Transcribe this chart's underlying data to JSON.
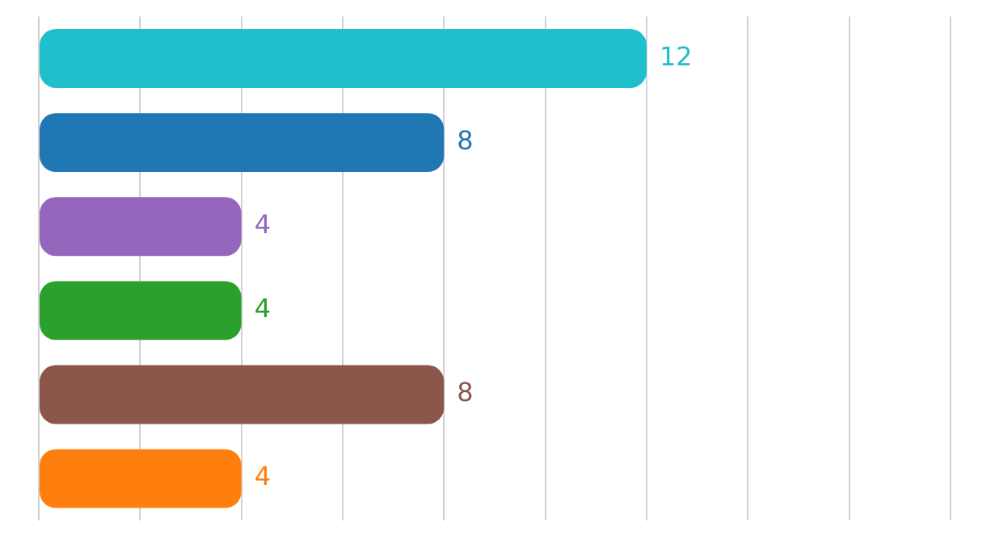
{
  "chart_data": {
    "type": "bar",
    "orientation": "horizontal",
    "categories": [
      null,
      null,
      null,
      null,
      null,
      null
    ],
    "values": [
      12,
      8,
      4,
      4,
      8,
      4
    ],
    "colors": [
      "#1fbfcc",
      "#1f77b4",
      "#9467bd",
      "#2ca02c",
      "#8c564b",
      "#ff7f0e"
    ],
    "xlim": [
      0,
      18
    ],
    "xticks": [
      {
        "value": 0,
        "label": null
      },
      {
        "value": 2,
        "label": null
      },
      {
        "value": 4,
        "label": null
      },
      {
        "value": 6,
        "label": null
      },
      {
        "value": 8,
        "label": null
      },
      {
        "value": 10,
        "label": null
      },
      {
        "value": 12,
        "label": null
      },
      {
        "value": 14,
        "label": null
      },
      {
        "value": 16,
        "label": null
      },
      {
        "value": 18,
        "label": null
      }
    ],
    "grid": "x",
    "data_labels": true,
    "legend": false
  }
}
